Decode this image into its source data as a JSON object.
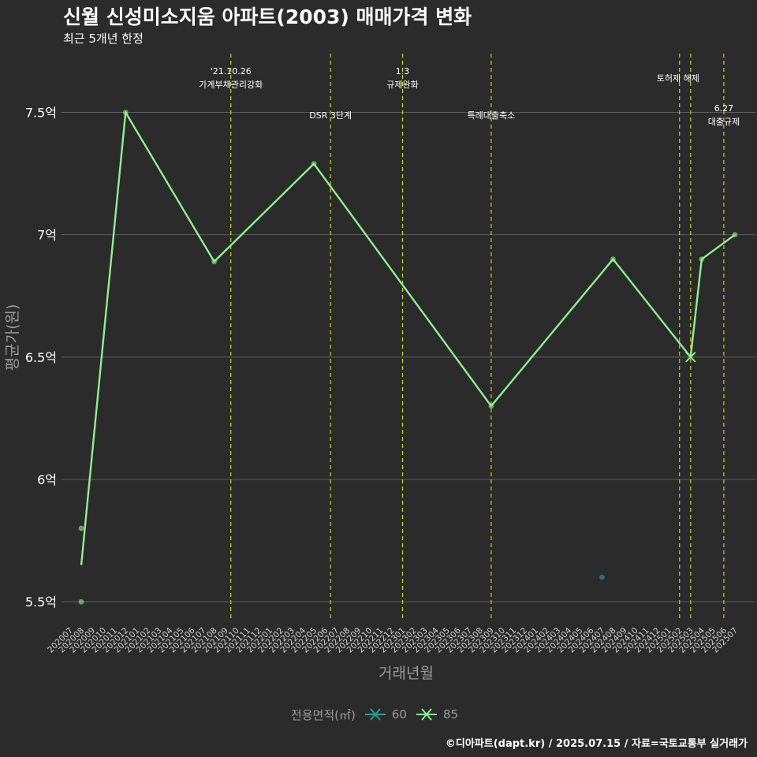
{
  "header": {
    "title": "신월 신성미소지움 아파트(2003) 매매가격 변화",
    "subtitle": "최근 5개년 한정"
  },
  "footer": {
    "caption": "©디아파트(dapt.kr) / 2025.07.15 / 자료=국토교통부 실거래가"
  },
  "colors": {
    "background": "#2b2b2b",
    "grid": "#5e5e5e",
    "vline": "#d8d820",
    "series_60": "#2a9d8f",
    "series_85": "#90ee90",
    "axis_text": "#9a9a9a"
  },
  "legend": {
    "title": "전용면적(㎡)",
    "items": [
      {
        "label": "60",
        "color": "#2a9d8f"
      },
      {
        "label": "85",
        "color": "#90ee90"
      }
    ]
  },
  "chart_data": {
    "type": "line",
    "title": "신월 신성미소지움 아파트(2003) 매매가격 변화",
    "subtitle": "최근 5개년 한정",
    "xlabel": "거래년월",
    "ylabel": "평균가(원)",
    "ylim": [
      5.42,
      7.74
    ],
    "yticks": [
      {
        "value": 5.5,
        "label": "5.5억"
      },
      {
        "value": 6.0,
        "label": "6억"
      },
      {
        "value": 6.5,
        "label": "6.5억"
      },
      {
        "value": 7.0,
        "label": "7억"
      },
      {
        "value": 7.5,
        "label": "7.5억"
      }
    ],
    "categories": [
      "202007",
      "202008",
      "202009",
      "202010",
      "202011",
      "202012",
      "202101",
      "202102",
      "202103",
      "202104",
      "202105",
      "202106",
      "202107",
      "202108",
      "202109",
      "202110",
      "202111",
      "202112",
      "202201",
      "202202",
      "202203",
      "202204",
      "202205",
      "202206",
      "202207",
      "202208",
      "202209",
      "202210",
      "202211",
      "202212",
      "202301",
      "202302",
      "202303",
      "202304",
      "202305",
      "202306",
      "202307",
      "202308",
      "202309",
      "202310",
      "202311",
      "202312",
      "202401",
      "202402",
      "202403",
      "202404",
      "202405",
      "202406",
      "202407",
      "202408",
      "202409",
      "202410",
      "202411",
      "202412",
      "202501",
      "202502",
      "202503",
      "202504",
      "202505",
      "202506",
      "202507"
    ],
    "series": [
      {
        "name": "60",
        "color": "#2a9d8f",
        "points": [
          {
            "x": "202407",
            "y": 5.6
          }
        ],
        "line": false
      },
      {
        "name": "85",
        "color": "#90ee90",
        "points": [
          {
            "x": "202008",
            "y": 5.65
          },
          {
            "x": "202012",
            "y": 7.5
          },
          {
            "x": "202108",
            "y": 6.89
          },
          {
            "x": "202205",
            "y": 7.29
          },
          {
            "x": "202309",
            "y": 6.3
          },
          {
            "x": "202408",
            "y": 6.9
          },
          {
            "x": "202503",
            "y": 6.5
          },
          {
            "x": "202504",
            "y": 6.9
          },
          {
            "x": "202507",
            "y": 7.0
          }
        ],
        "scatter": [
          {
            "x": "202008",
            "y": 5.8
          },
          {
            "x": "202008",
            "y": 5.5
          },
          {
            "x": "202012",
            "y": 7.5
          },
          {
            "x": "202108",
            "y": 6.89
          },
          {
            "x": "202205",
            "y": 7.29
          },
          {
            "x": "202309",
            "y": 6.3
          },
          {
            "x": "202408",
            "y": 6.9
          },
          {
            "x": "202504",
            "y": 6.9
          },
          {
            "x": "202507",
            "y": 7.0
          }
        ],
        "cross": [
          {
            "x": "202503",
            "y": 6.5
          }
        ]
      }
    ],
    "events": [
      {
        "x": "202109.5",
        "lines": [
          "'21.10.26",
          "가계부채관리강화"
        ],
        "level": "top"
      },
      {
        "x": "202206.5",
        "lines": [
          "DSR 3단계"
        ],
        "level": "mid"
      },
      {
        "x": "202301",
        "lines": [
          "1.3",
          "규제완화"
        ],
        "level": "top"
      },
      {
        "x": "202309",
        "lines": [
          "특례대출축소"
        ],
        "level": "mid"
      },
      {
        "x": "202502",
        "lines": [],
        "level": "none"
      },
      {
        "x": "202503",
        "lines": [
          "토허제 해제"
        ],
        "level": "top2"
      },
      {
        "x": "202506",
        "lines": [
          "6.27",
          "대출규제"
        ],
        "level": "low"
      }
    ]
  }
}
